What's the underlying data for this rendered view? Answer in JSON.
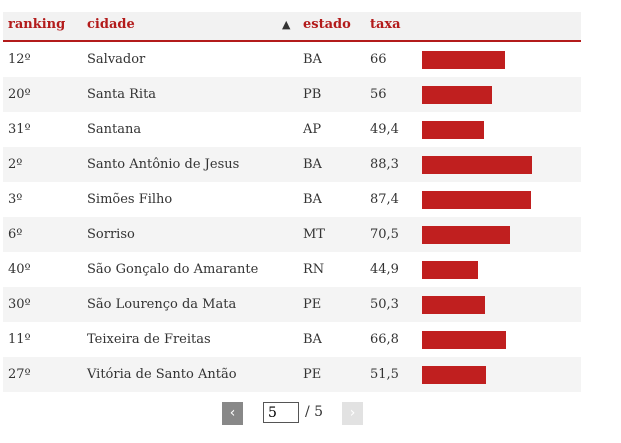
{
  "header": {
    "ranking": "ranking",
    "cidade": "cidade",
    "estado": "estado",
    "taxa": "taxa",
    "sort_icon": "▲"
  },
  "rows": [
    {
      "ranking": "12º",
      "cidade": "Salvador",
      "estado": "BA",
      "taxa": "66",
      "value": 66
    },
    {
      "ranking": "20º",
      "cidade": "Santa Rita",
      "estado": "PB",
      "taxa": "56",
      "value": 56
    },
    {
      "ranking": "31º",
      "cidade": "Santana",
      "estado": "AP",
      "taxa": "49,4",
      "value": 49.4
    },
    {
      "ranking": "2º",
      "cidade": "Santo Antônio de Jesus",
      "estado": "BA",
      "taxa": "88,3",
      "value": 88.3
    },
    {
      "ranking": "3º",
      "cidade": "Simões Filho",
      "estado": "BA",
      "taxa": "87,4",
      "value": 87.4
    },
    {
      "ranking": "6º",
      "cidade": "Sorriso",
      "estado": "MT",
      "taxa": "70,5",
      "value": 70.5
    },
    {
      "ranking": "40º",
      "cidade": "São Gonçalo do Amarante",
      "estado": "RN",
      "taxa": "44,9",
      "value": 44.9
    },
    {
      "ranking": "30º",
      "cidade": "São Lourenço da Mata",
      "estado": "PE",
      "taxa": "50,3",
      "value": 50.3
    },
    {
      "ranking": "11º",
      "cidade": "Teixeira de Freitas",
      "estado": "BA",
      "taxa": "66,8",
      "value": 66.8
    },
    {
      "ranking": "27º",
      "cidade": "Vitória de Santo Antão",
      "estado": "PE",
      "taxa": "51,5",
      "value": 51.5
    }
  ],
  "bar_scale_max": 100,
  "bar_color": "#c01f1f",
  "pagination": {
    "prev_label": "‹",
    "next_label": "›",
    "current_page": "5",
    "total_label": "/ 5"
  }
}
